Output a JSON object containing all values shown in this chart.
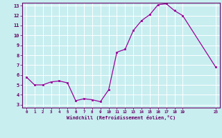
{
  "x_data": [
    0,
    1,
    2,
    3,
    4,
    5,
    6,
    7,
    8,
    9,
    10,
    11,
    12,
    13,
    14,
    15,
    16,
    17,
    18,
    19,
    23
  ],
  "y_data": [
    5.8,
    5.0,
    5.0,
    5.3,
    5.4,
    5.2,
    3.4,
    3.6,
    3.5,
    3.3,
    4.5,
    8.3,
    8.6,
    10.5,
    11.5,
    12.1,
    13.1,
    13.2,
    12.5,
    12.0,
    6.8
  ],
  "line_color": "#990099",
  "marker_color": "#990099",
  "bg_color": "#c8eef0",
  "grid_color": "#aadddd",
  "xlabel": "Windchill (Refroidissement éolien,°C)",
  "xlabel_color": "#660066",
  "tick_color": "#660066",
  "ylim": [
    3,
    13
  ],
  "xlim": [
    -0.5,
    23.5
  ],
  "xticks": [
    0,
    1,
    2,
    3,
    4,
    5,
    6,
    7,
    8,
    9,
    10,
    11,
    12,
    13,
    14,
    15,
    16,
    17,
    18,
    19,
    23
  ],
  "yticks": [
    3,
    4,
    5,
    6,
    7,
    8,
    9,
    10,
    11,
    12,
    13
  ],
  "spine_color": "#660066"
}
